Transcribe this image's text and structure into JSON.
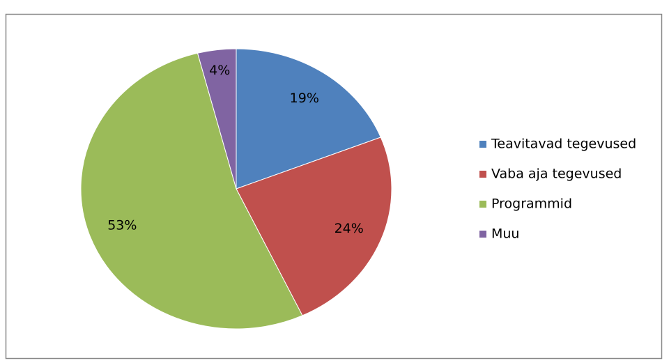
{
  "chart_data": {
    "type": "pie",
    "categories": [
      "Teavitavad tegevused",
      "Vaba aja tegevused",
      "Programmid",
      "Muu"
    ],
    "values": [
      19,
      24,
      53,
      4
    ],
    "value_labels": [
      "19%",
      "24%",
      "53%",
      "4%"
    ],
    "colors": [
      "#4f81bd",
      "#c0504d",
      "#9bbb59",
      "#8064a2"
    ],
    "legend": "right"
  }
}
